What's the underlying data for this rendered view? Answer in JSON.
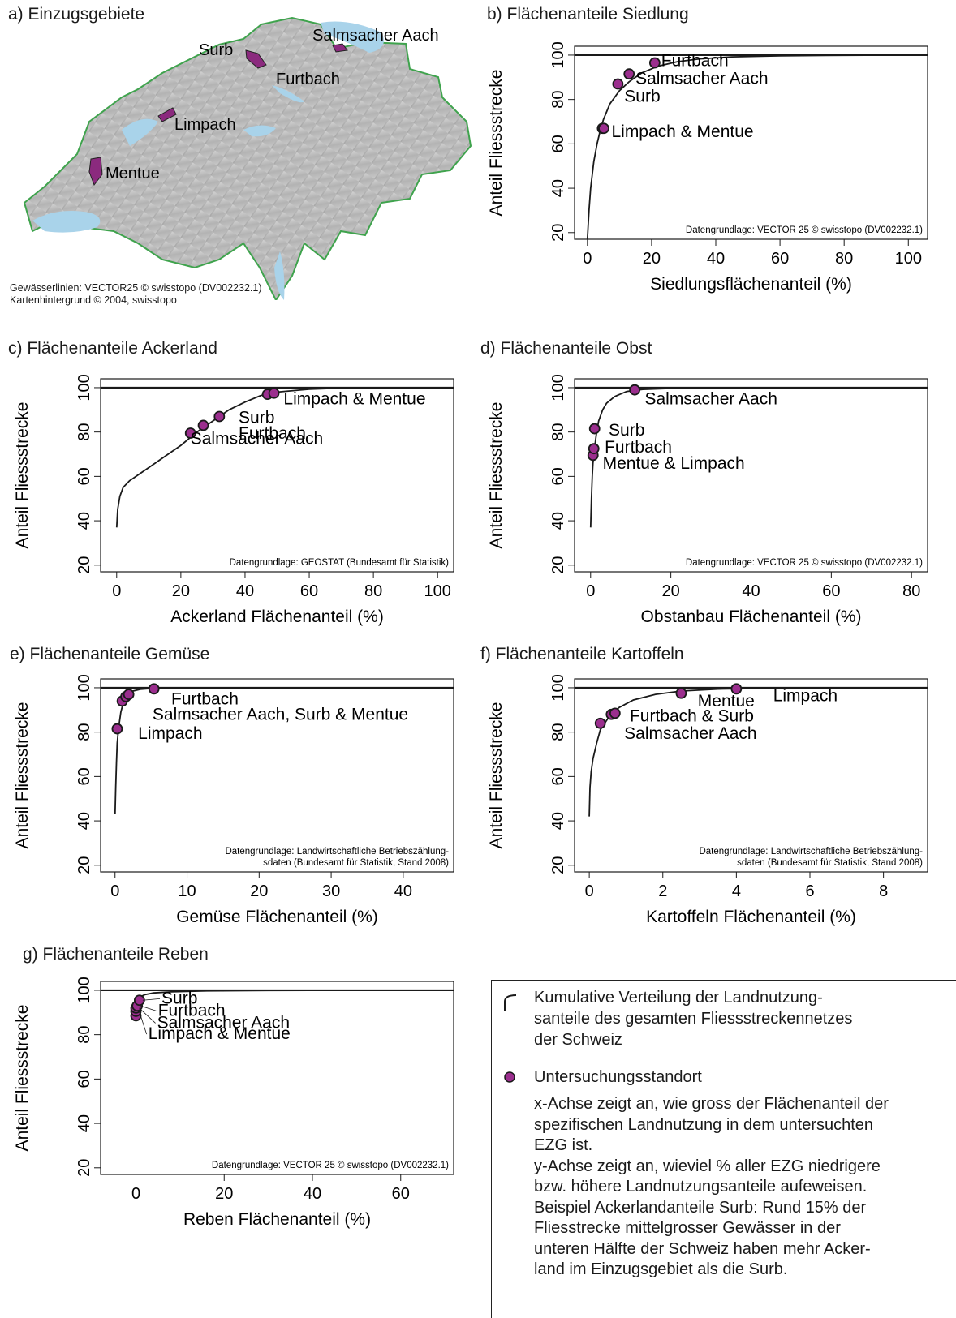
{
  "map": {
    "title": "a) Einzugsgebiete",
    "labels": [
      "Surb",
      "Salmsacher Aach",
      "Furtbach",
      "Limpach",
      "Mentue"
    ],
    "credits": [
      "Gewässerlinien: VECTOR25 © swisstopo (DV002232.1)",
      "Kartenhintergrund © 2004, swisstopo"
    ],
    "colors": {
      "catchment": "#8b2a7e",
      "relief": "#bfbfbf",
      "lakes": "#a9d3ea",
      "border": "#3fa34d"
    }
  },
  "colors": {
    "point_fill": "#9b2e8e",
    "point_stroke": "#1a1a1a",
    "curve": "#1a1a1a"
  },
  "chart_data": [
    {
      "id": "b",
      "type": "line",
      "title": "b) Flächenanteile Siedlung",
      "xlabel": "Siedlungsflächenanteil (%)",
      "ylabel": "Anteil Fliessstrecke",
      "xlim": [
        -4,
        106
      ],
      "ylim": [
        17,
        104
      ],
      "xticks": [
        0,
        20,
        40,
        60,
        80,
        100
      ],
      "yticks": [
        20,
        40,
        60,
        80,
        100
      ],
      "curve": [
        [
          0,
          17
        ],
        [
          0.5,
          30
        ],
        [
          1,
          40
        ],
        [
          2,
          52
        ],
        [
          3,
          60
        ],
        [
          4,
          66
        ],
        [
          5,
          71
        ],
        [
          7,
          78
        ],
        [
          10,
          84
        ],
        [
          13,
          88
        ],
        [
          17,
          92
        ],
        [
          22,
          95
        ],
        [
          28,
          97
        ],
        [
          35,
          98.3
        ],
        [
          45,
          99.2
        ],
        [
          60,
          99.7
        ],
        [
          80,
          99.9
        ],
        [
          100,
          100
        ]
      ],
      "points": [
        [
          4.7,
          67
        ],
        [
          5.1,
          67
        ],
        [
          9.5,
          87
        ],
        [
          13,
          91.5
        ],
        [
          21,
          96.5
        ]
      ],
      "annotations": [
        {
          "text": "Furtbach",
          "x": 23,
          "y": 95
        },
        {
          "text": "Salmsacher Aach",
          "x": 15,
          "y": 87
        },
        {
          "text": "Surb",
          "x": 11.5,
          "y": 79
        },
        {
          "text": "Limpach & Mentue",
          "x": 7.5,
          "y": 63
        }
      ],
      "source": [
        "Datengrundlage: VECTOR 25 © swisstopo (DV002232.1)"
      ]
    },
    {
      "id": "c",
      "type": "line",
      "title": "c) Flächenanteile Ackerland",
      "xlabel": "Ackerland Flächenanteil (%)",
      "ylabel": "Anteil Fliessstrecke",
      "xlim": [
        -5,
        105
      ],
      "ylim": [
        17,
        104
      ],
      "xticks": [
        0,
        20,
        40,
        60,
        80,
        100
      ],
      "yticks": [
        20,
        40,
        60,
        80,
        100
      ],
      "curve": [
        [
          0,
          37
        ],
        [
          0.3,
          45
        ],
        [
          1,
          51
        ],
        [
          2,
          55
        ],
        [
          4,
          58
        ],
        [
          7,
          61
        ],
        [
          11,
          65
        ],
        [
          15,
          69
        ],
        [
          20,
          74
        ],
        [
          25,
          80
        ],
        [
          30,
          85
        ],
        [
          35,
          90
        ],
        [
          40,
          93.5
        ],
        [
          45,
          96.5
        ],
        [
          50,
          98
        ],
        [
          60,
          99.3
        ],
        [
          70,
          99.8
        ],
        [
          85,
          100
        ],
        [
          100,
          100
        ]
      ],
      "points": [
        [
          23,
          79.5
        ],
        [
          27,
          83
        ],
        [
          32,
          87
        ],
        [
          47,
          97
        ],
        [
          49,
          97.5
        ]
      ],
      "annotations": [
        {
          "text": "Limpach & Mentue",
          "x": 52,
          "y": 92.5
        },
        {
          "text": "Surb",
          "x": 38,
          "y": 84
        },
        {
          "text": "Furtbach",
          "x": 38,
          "y": 77
        },
        {
          "text": "Salmsacher Aach",
          "x": 23,
          "y": 74.5
        }
      ],
      "source": [
        "Datengrundlage: GEOSTAT (Bundesamt für Statistik)"
      ]
    },
    {
      "id": "d",
      "type": "line",
      "title": "d) Flächenanteile Obst",
      "xlabel": "Obstanbau Flächenanteil (%)",
      "ylabel": "Anteil Fliessstrecke",
      "xlim": [
        -4,
        84
      ],
      "ylim": [
        17,
        104
      ],
      "xticks": [
        0,
        20,
        40,
        60,
        80
      ],
      "yticks": [
        20,
        40,
        60,
        80,
        100
      ],
      "curve": [
        [
          0,
          37
        ],
        [
          0.2,
          50
        ],
        [
          0.4,
          60
        ],
        [
          0.6,
          66
        ],
        [
          0.8,
          70
        ],
        [
          1,
          73
        ],
        [
          1.5,
          80
        ],
        [
          2,
          85
        ],
        [
          3,
          90
        ],
        [
          4,
          93
        ],
        [
          6,
          96
        ],
        [
          9,
          98.3
        ],
        [
          13,
          99.2
        ],
        [
          20,
          99.7
        ],
        [
          40,
          100
        ],
        [
          84,
          100
        ]
      ],
      "points": [
        [
          0.6,
          69.5
        ],
        [
          0.8,
          72.5
        ],
        [
          1,
          81.5
        ],
        [
          11,
          99
        ]
      ],
      "annotations": [
        {
          "text": "Salmsacher Aach",
          "x": 13.5,
          "y": 92.5
        },
        {
          "text": "Surb",
          "x": 4.5,
          "y": 78.5
        },
        {
          "text": "Furtbach",
          "x": 3.5,
          "y": 70.8
        },
        {
          "text": "Mentue & Limpach",
          "x": 3,
          "y": 63.5
        }
      ],
      "source": [
        "Datengrundlage: VECTOR 25 © swisstopo (DV002232.1)"
      ]
    },
    {
      "id": "e",
      "type": "line",
      "title": "e) Flächenanteile Gemüse",
      "xlabel": "Gemüse Flächenanteil (%)",
      "ylabel": "Anteil Fliessstrecke",
      "xlim": [
        -2,
        47
      ],
      "ylim": [
        17,
        104
      ],
      "xticks": [
        0,
        10,
        20,
        30,
        40
      ],
      "yticks": [
        20,
        40,
        60,
        80,
        100
      ],
      "curve": [
        [
          0,
          43
        ],
        [
          0.1,
          55
        ],
        [
          0.2,
          66
        ],
        [
          0.3,
          75
        ],
        [
          0.5,
          82
        ],
        [
          0.8,
          89
        ],
        [
          1.2,
          94
        ],
        [
          1.8,
          97
        ],
        [
          2.5,
          98.5
        ],
        [
          3.5,
          99.3
        ],
        [
          5,
          99.7
        ],
        [
          10,
          100
        ],
        [
          47,
          100
        ]
      ],
      "points": [
        [
          0.3,
          81.5
        ],
        [
          1.0,
          94
        ],
        [
          1.5,
          96
        ],
        [
          1.9,
          97
        ],
        [
          5.4,
          99.5
        ]
      ],
      "annotations": [
        {
          "text": "Furtbach",
          "x": 7.8,
          "y": 92.5
        },
        {
          "text": "Salmsacher Aach, Surb & Mentue",
          "x": 5.2,
          "y": 85.5
        },
        {
          "text": "Limpach",
          "x": 3.2,
          "y": 77
        }
      ],
      "source": [
        "Datengrundlage: Landwirtschaftliche Betriebszählung-",
        "sdaten (Bundesamt für Statistik, Stand 2008)"
      ]
    },
    {
      "id": "f",
      "type": "line",
      "title": "f) Flächenanteile Kartoffeln",
      "xlabel": "Kartoffeln Flächenanteil (%)",
      "ylabel": "Anteil Fliessstrecke",
      "xlim": [
        -0.4,
        9.2
      ],
      "ylim": [
        17,
        104
      ],
      "xticks": [
        0,
        2,
        4,
        6,
        8
      ],
      "yticks": [
        20,
        40,
        60,
        80,
        100
      ],
      "curve": [
        [
          0,
          42
        ],
        [
          0.02,
          55
        ],
        [
          0.05,
          62
        ],
        [
          0.1,
          68
        ],
        [
          0.2,
          75
        ],
        [
          0.3,
          81
        ],
        [
          0.5,
          86
        ],
        [
          0.8,
          91
        ],
        [
          1.2,
          94.5
        ],
        [
          1.8,
          97
        ],
        [
          2.5,
          98.5
        ],
        [
          3.5,
          99.4
        ],
        [
          5,
          99.8
        ],
        [
          7,
          100
        ],
        [
          9.2,
          100
        ]
      ],
      "points": [
        [
          0.3,
          84
        ],
        [
          0.6,
          88
        ],
        [
          0.7,
          88.5
        ],
        [
          2.5,
          97.5
        ],
        [
          4.0,
          99.5
        ]
      ],
      "annotations": [
        {
          "text": "Limpach",
          "x": 5.0,
          "y": 94
        },
        {
          "text": "Mentue",
          "x": 2.95,
          "y": 91.5
        },
        {
          "text": "Furtbach & Surb",
          "x": 1.1,
          "y": 84.8
        },
        {
          "text": "Salmsacher Aach",
          "x": 0.95,
          "y": 77
        }
      ],
      "source": [
        "Datengrundlage: Landwirtschaftliche Betriebszählung-",
        "sdaten (Bundesamt für Statistik, Stand 2008)"
      ]
    },
    {
      "id": "g",
      "type": "line",
      "title": "g) Flächenanteile Reben",
      "xlabel": "Reben Flächenanteil (%)",
      "ylabel": "Anteil Fliessstrecke",
      "xlim": [
        -8,
        72
      ],
      "ylim": [
        17,
        104
      ],
      "xticks": [
        0,
        20,
        40,
        60
      ],
      "yticks": [
        20,
        40,
        60,
        80,
        100
      ],
      "curve": [
        [
          0,
          88
        ],
        [
          0.2,
          93
        ],
        [
          0.5,
          95.5
        ],
        [
          1,
          97
        ],
        [
          2,
          98
        ],
        [
          4,
          98.8
        ],
        [
          8,
          99.3
        ],
        [
          15,
          99.7
        ],
        [
          30,
          99.9
        ],
        [
          72,
          100
        ]
      ],
      "points": [
        [
          0,
          88.5
        ],
        [
          0,
          90.5
        ],
        [
          0,
          92
        ],
        [
          0.3,
          93
        ],
        [
          0.8,
          95.5
        ]
      ],
      "annotations": [
        {
          "text": "Surb",
          "x": 5.8,
          "y": 94
        },
        {
          "text": "Furtbach",
          "x": 5,
          "y": 88.5
        },
        {
          "text": "Salmsacher Aach",
          "x": 4.8,
          "y": 83
        },
        {
          "text": "Limpach & Mentue",
          "x": 2.8,
          "y": 78
        }
      ],
      "source": [
        "Datengrundlage: VECTOR 25 © swisstopo (DV002232.1)"
      ]
    }
  ],
  "legend": {
    "curve_text": "Kumulative Verteilung der Landnutzung-santeile des gesamten Fliessstreckennetzes der Schweiz",
    "curve_lines": [
      "Kumulative Verteilung der Landnutzung-",
      "santeile des gesamten Fliessstreckennetzes",
      "der Schweiz"
    ],
    "point_text": "Untersuchungsstandort",
    "explanation_lines": [
      "x-Achse zeigt an, wie gross der Flächenanteil der",
      "spezifischen Landnutzung in dem untersuchten",
      "EZG ist.",
      "y-Achse zeigt an, wieviel % aller EZG niedrigere",
      "bzw. höhere Landnutzungsanteile aufeweisen.",
      "Beispiel Ackerlandanteile Surb: Rund 15% der",
      "Fliesstrecke mittelgrosser Gewässer in der",
      "unteren Hälfte der Schweiz haben mehr Acker-",
      "land im Einzugsgebiet als die Surb."
    ]
  }
}
